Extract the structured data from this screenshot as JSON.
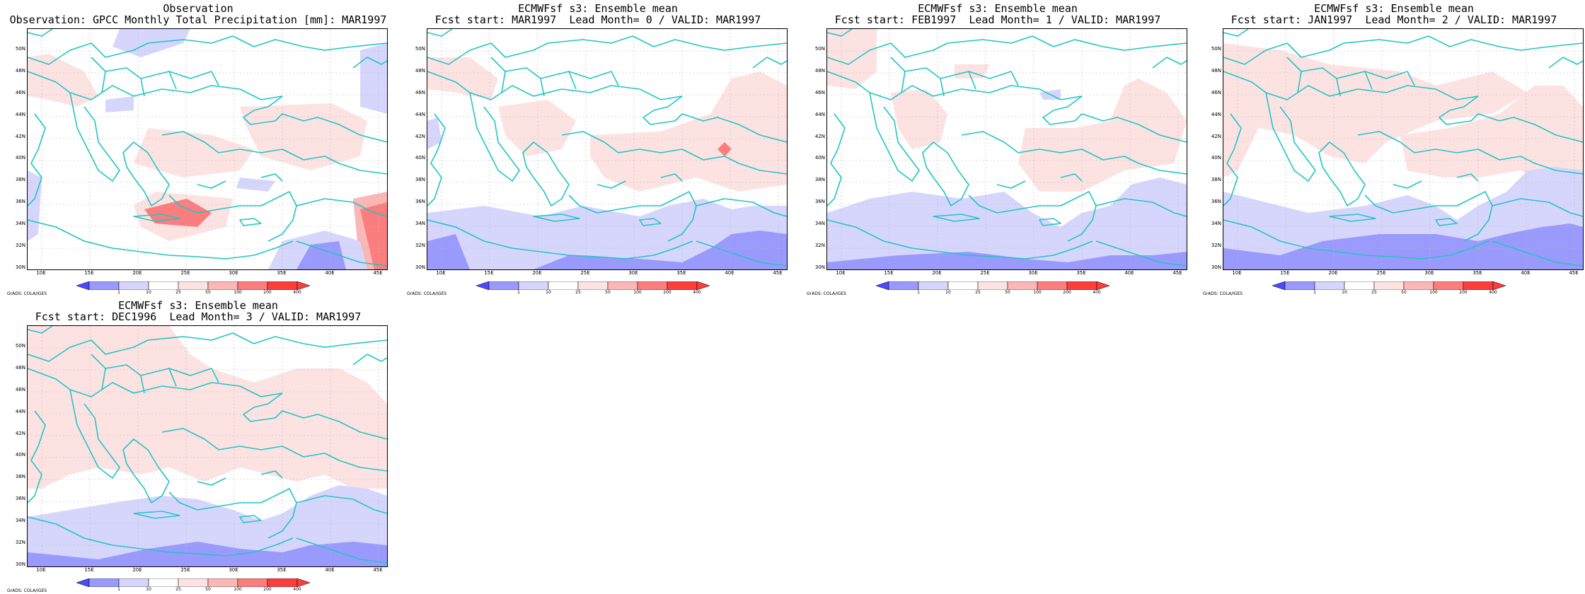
{
  "colors": {
    "coast": "#22c5c5",
    "grid": "#b8b8b8",
    "levels": [
      "#4a4aff",
      "#9a9afd",
      "#d6d6fd",
      "#ffffff",
      "#fde2e2",
      "#fbb6b6",
      "#fb7d7d",
      "#fa3e3e"
    ]
  },
  "axes": {
    "lat_labels": [
      "30N",
      "32N",
      "34N",
      "36N",
      "38N",
      "40N",
      "42N",
      "44N",
      "46N",
      "48N",
      "50N"
    ],
    "lon_labels": [
      "10E",
      "15E",
      "20E",
      "25E",
      "30E",
      "35E",
      "40E",
      "45E"
    ]
  },
  "colorbar": {
    "labels": [
      "1",
      "10",
      "25",
      "50",
      "100",
      "200",
      "400"
    ]
  },
  "credit": "GrADS: COLA/IGES",
  "panels": [
    {
      "title1": "Observation",
      "title2": "Observation: GPCC Monthly Total Precipitation [mm]: MAR1997"
    },
    {
      "title1": "ECMWFsf s3: Ensemble mean",
      "title2": "Fcst start: MAR1997  Lead Month= 0 / VALID: MAR1997"
    },
    {
      "title1": "ECMWFsf s3: Ensemble mean",
      "title2": "Fcst start: FEB1997  Lead Month= 1 / VALID: MAR1997"
    },
    {
      "title1": "ECMWFsf s3: Ensemble mean",
      "title2": "Fcst start: JAN1997  Lead Month= 2 / VALID: MAR1997"
    },
    {
      "title1": "ECMWFsf s3: Ensemble mean",
      "title2": "Fcst start: DEC1996  Lead Month= 3 / VALID: MAR1997"
    }
  ]
}
